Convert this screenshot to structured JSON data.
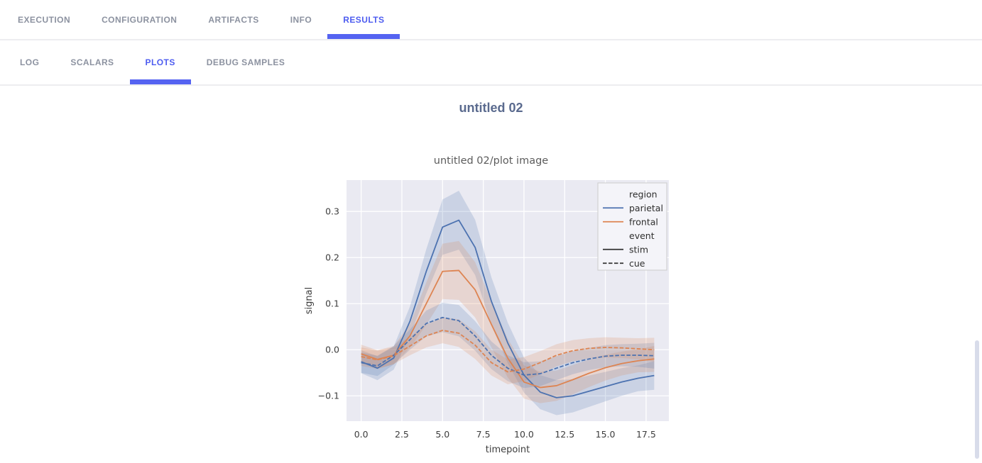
{
  "accent_color": "#4d5cf0",
  "tabs": {
    "items": [
      {
        "label": "EXECUTION"
      },
      {
        "label": "CONFIGURATION"
      },
      {
        "label": "ARTIFACTS"
      },
      {
        "label": "INFO"
      },
      {
        "label": "RESULTS",
        "active": true
      }
    ]
  },
  "subtabs": {
    "items": [
      {
        "label": "LOG"
      },
      {
        "label": "SCALARS"
      },
      {
        "label": "PLOTS",
        "active": true
      },
      {
        "label": "DEBUG SAMPLES"
      }
    ]
  },
  "page_title": "untitled 02",
  "chart_data": {
    "type": "line",
    "title": "untitled 02/plot image",
    "xlabel": "timepoint",
    "ylabel": "signal",
    "x": [
      0,
      1,
      2,
      3,
      4,
      5,
      6,
      7,
      8,
      9,
      10,
      11,
      12,
      13,
      14,
      15,
      16,
      17,
      18
    ],
    "x_ticks": [
      0,
      2.5,
      5,
      7.5,
      10,
      12.5,
      15,
      17.5
    ],
    "y_ticks": [
      -0.1,
      0.0,
      0.1,
      0.2,
      0.3
    ],
    "x_range": [
      -0.9,
      18.9
    ],
    "y_range": [
      -0.155,
      0.368
    ],
    "grid": true,
    "legend_position": "upper right",
    "series": [
      {
        "name": "parietal-stim",
        "region": "parietal",
        "event": "stim",
        "color": "#4c72b0",
        "dash": false,
        "values": [
          -0.026,
          -0.04,
          -0.018,
          0.062,
          0.17,
          0.266,
          0.281,
          0.222,
          0.105,
          0.015,
          -0.055,
          -0.092,
          -0.104,
          -0.1,
          -0.09,
          -0.08,
          -0.07,
          -0.062,
          -0.056
        ],
        "ci": [
          0.025,
          0.026,
          0.025,
          0.032,
          0.048,
          0.06,
          0.064,
          0.06,
          0.052,
          0.044,
          0.038,
          0.037,
          0.038,
          0.036,
          0.034,
          0.032,
          0.03,
          0.028,
          0.031
        ]
      },
      {
        "name": "frontal-stim",
        "region": "frontal",
        "event": "stim",
        "color": "#dd8452",
        "dash": false,
        "values": [
          -0.009,
          -0.021,
          -0.012,
          0.03,
          0.1,
          0.17,
          0.172,
          0.13,
          0.055,
          -0.018,
          -0.07,
          -0.082,
          -0.078,
          -0.065,
          -0.051,
          -0.039,
          -0.03,
          -0.024,
          -0.02
        ],
        "ci": [
          0.02,
          0.02,
          0.02,
          0.026,
          0.046,
          0.06,
          0.064,
          0.06,
          0.05,
          0.042,
          0.036,
          0.034,
          0.033,
          0.032,
          0.03,
          0.028,
          0.026,
          0.025,
          0.028
        ]
      },
      {
        "name": "parietal-cue",
        "region": "parietal",
        "event": "cue",
        "color": "#4c72b0",
        "dash": true,
        "values": [
          -0.028,
          -0.035,
          -0.012,
          0.022,
          0.057,
          0.07,
          0.063,
          0.03,
          -0.012,
          -0.04,
          -0.055,
          -0.052,
          -0.04,
          -0.028,
          -0.02,
          -0.014,
          -0.012,
          -0.012,
          -0.013
        ],
        "ci": [
          0.022,
          0.022,
          0.02,
          0.022,
          0.028,
          0.032,
          0.034,
          0.032,
          0.03,
          0.028,
          0.028,
          0.027,
          0.026,
          0.025,
          0.024,
          0.024,
          0.024,
          0.025,
          0.028
        ]
      },
      {
        "name": "frontal-cue",
        "region": "frontal",
        "event": "cue",
        "color": "#dd8452",
        "dash": true,
        "values": [
          -0.015,
          -0.022,
          -0.013,
          0.008,
          0.03,
          0.042,
          0.036,
          0.01,
          -0.028,
          -0.048,
          -0.042,
          -0.028,
          -0.012,
          -0.002,
          0.003,
          0.005,
          0.004,
          0.002,
          0.0
        ],
        "ci": [
          0.02,
          0.02,
          0.018,
          0.02,
          0.025,
          0.028,
          0.03,
          0.03,
          0.028,
          0.027,
          0.026,
          0.025,
          0.024,
          0.023,
          0.022,
          0.022,
          0.022,
          0.023,
          0.026
        ]
      }
    ],
    "legend": {
      "width": 97,
      "entries": [
        {
          "label": "region",
          "header": true
        },
        {
          "label": "parietal",
          "line": true,
          "color": "#4c72b0",
          "dash": false
        },
        {
          "label": "frontal",
          "line": true,
          "color": "#dd8452",
          "dash": false
        },
        {
          "label": "event",
          "header": true
        },
        {
          "label": "stim",
          "line": true,
          "color": "#333333",
          "dash": false
        },
        {
          "label": "cue",
          "line": true,
          "color": "#333333",
          "dash": true
        }
      ]
    },
    "colors": {
      "plot_bg": "#eaeaf2",
      "grid": "#ffffff",
      "legend_bg": "#f4f4f9",
      "legend_border": "#cccccc",
      "blue": "#4c72b0",
      "orange": "#dd8452"
    }
  }
}
